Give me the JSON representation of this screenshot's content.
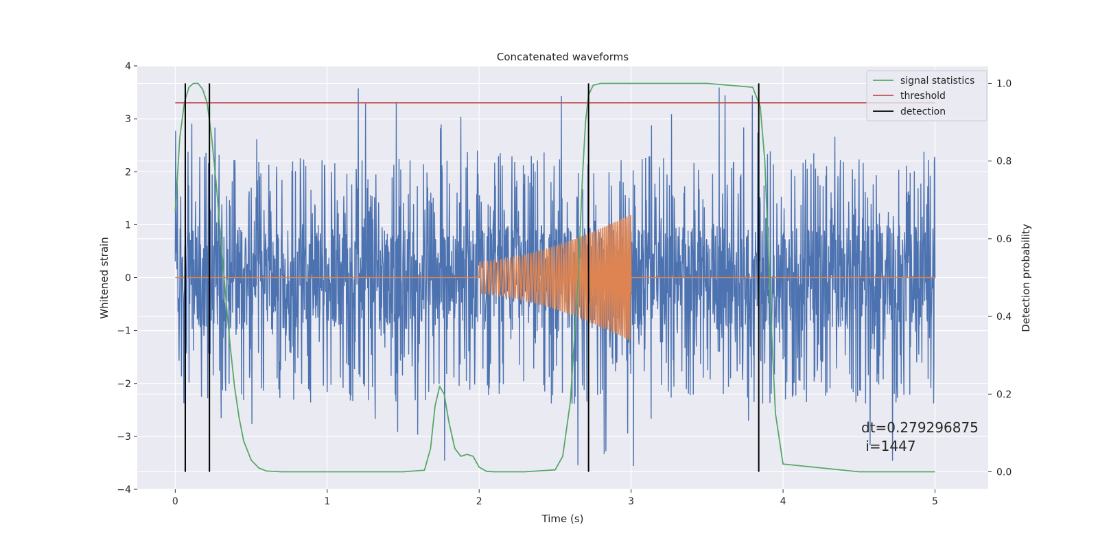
{
  "chart_data": {
    "type": "line",
    "title": "Concatenated waveforms",
    "xlabel": "Time (s)",
    "ylabel": "Whitened strain",
    "y2label": "Detection probability",
    "xlim": [
      -0.25,
      5.35
    ],
    "ylim": [
      -4,
      4
    ],
    "y2lim": [
      -0.045,
      1.045
    ],
    "xticks": [
      0,
      1,
      2,
      3,
      4,
      5
    ],
    "yticks": [
      -4,
      -3,
      -2,
      -1,
      0,
      1,
      2,
      3,
      4
    ],
    "y2ticks": [
      0.0,
      0.2,
      0.4,
      0.6,
      0.8,
      1.0
    ],
    "grid": true,
    "legend_position": "top-right",
    "colors": {
      "strain": "#4c72b0",
      "injection": "#dd8452",
      "signal_statistics": "#55a868",
      "threshold": "#c44e52",
      "detection": "#000000",
      "background": "#eaeaf2",
      "grid": "#ffffff"
    },
    "series": [
      {
        "name": "signal statistics",
        "axis": "right",
        "x": [
          0.0,
          0.03,
          0.06,
          0.09,
          0.12,
          0.15,
          0.18,
          0.21,
          0.24,
          0.27,
          0.3,
          0.33,
          0.36,
          0.39,
          0.42,
          0.45,
          0.5,
          0.55,
          0.6,
          0.7,
          1.0,
          1.5,
          1.64,
          1.68,
          1.71,
          1.74,
          1.77,
          1.8,
          1.84,
          1.88,
          1.92,
          1.96,
          2.0,
          2.05,
          2.1,
          2.3,
          2.5,
          2.55,
          2.6,
          2.65,
          2.68,
          2.7,
          2.72,
          2.75,
          2.8,
          3.0,
          3.5,
          3.8,
          3.85,
          3.88,
          3.9,
          3.92,
          3.95,
          4.0,
          4.5,
          5.0
        ],
        "y": [
          0.67,
          0.86,
          0.95,
          0.99,
          1.0,
          1.0,
          0.985,
          0.95,
          0.86,
          0.74,
          0.6,
          0.46,
          0.33,
          0.22,
          0.14,
          0.08,
          0.03,
          0.01,
          0.002,
          0.0,
          0.0,
          0.0,
          0.004,
          0.06,
          0.17,
          0.22,
          0.2,
          0.13,
          0.06,
          0.04,
          0.045,
          0.04,
          0.012,
          0.001,
          0.0,
          0.0,
          0.005,
          0.04,
          0.18,
          0.48,
          0.76,
          0.9,
          0.97,
          0.995,
          1.0,
          1.0,
          1.0,
          0.99,
          0.94,
          0.8,
          0.6,
          0.4,
          0.15,
          0.02,
          0.0,
          0.0
        ]
      },
      {
        "name": "threshold",
        "axis": "right",
        "x": [
          0,
          5
        ],
        "y": [
          0.95,
          0.95
        ]
      },
      {
        "name": "detection",
        "axis": "right",
        "x": [
          0.066,
          0.225,
          2.72,
          3.84
        ],
        "y_range": [
          0.0,
          1.0
        ]
      }
    ],
    "noise": {
      "x_range": [
        0,
        5
      ],
      "core_amplitude": 0.7,
      "peak_amplitude": 3.6
    },
    "injection": {
      "x_range": [
        2.0,
        3.0
      ],
      "amplitude_start": 0.3,
      "amplitude_end": 1.2,
      "frequency_start": 40,
      "frequency_end": 85
    },
    "annotation": {
      "line1": "dt=0.279296875",
      "line2": " i=1447",
      "x": 4.5,
      "y": -2.95
    }
  }
}
